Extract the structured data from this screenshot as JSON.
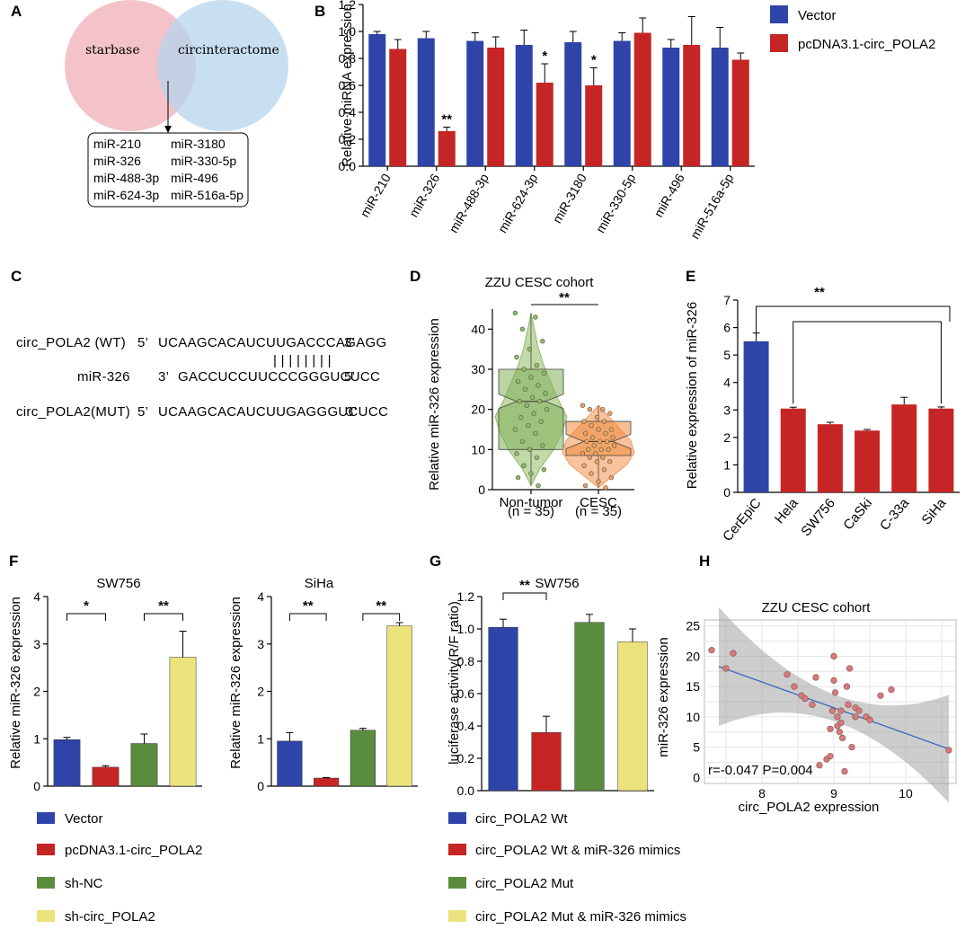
{
  "colors": {
    "blue": "#2e44a8",
    "red": "#c62525",
    "green": "#5a8c3e",
    "yellow": "#ece27c",
    "vennPink": "#f2b8bf",
    "vennBlue": "#b5d4ee",
    "violinGreen": "#b7d49a",
    "violinOrange": "#f7b98c"
  },
  "panelA": {
    "label": "A",
    "set1": "starbase",
    "set2": "circinteractome",
    "box_col1": [
      "miR-210",
      "miR-326",
      "miR-488-3p",
      "miR-624-3p"
    ],
    "box_col2": [
      "miR-3180",
      "miR-330-5p",
      "miR-496",
      "miR-516a-5p"
    ]
  },
  "panelC": {
    "label": "C",
    "wt_name": "circ_POLA2 (WT)",
    "wt_p5": "5’",
    "wt_seq": "UCAAGCACAUCUUGACCCAGAGG",
    "wt_p3": "3’",
    "bars": "| | | | | | | |",
    "mir_name": "miR-326",
    "mir_p3": "3’",
    "mir_seq": "GACCUCCUUCCCGGGUCUCC",
    "mir_p5": "5’",
    "mut_name": "circ_POLA2(MUT)",
    "mut_p5": "5’",
    "mut_seq": "UCAAGCACAUCUUGAGGGUCUCC",
    "mut_p3": "3’"
  },
  "chart_data": [
    {
      "panel": "B",
      "type": "bar",
      "title": "",
      "ylabel": "Relative miRNA expression",
      "ylim": [
        0,
        1.2
      ],
      "yticks": [
        "0.0",
        "0.2",
        "0.4",
        "0.6",
        "0.8",
        "1.0",
        "1.2"
      ],
      "categories": [
        "miR-210",
        "miR-326",
        "miR-488-3p",
        "miR-624-3p",
        "miR-3180",
        "miR-330-5p",
        "miR-496",
        "miR-516a-5p"
      ],
      "series": [
        {
          "name": "Vector",
          "color": "#2e44a8",
          "values": [
            0.98,
            0.95,
            0.93,
            0.9,
            0.92,
            0.93,
            0.88,
            0.88
          ],
          "errors": [
            0.02,
            0.05,
            0.06,
            0.11,
            0.08,
            0.06,
            0.06,
            0.15
          ]
        },
        {
          "name": "pcDNA3.1-circ_POLA2",
          "color": "#c62525",
          "values": [
            0.87,
            0.26,
            0.88,
            0.62,
            0.6,
            0.99,
            0.9,
            0.79
          ],
          "errors": [
            0.07,
            0.03,
            0.08,
            0.14,
            0.13,
            0.11,
            0.21,
            0.05
          ]
        }
      ],
      "annotations": [
        {
          "category": "miR-326",
          "text": "**"
        },
        {
          "category": "miR-624-3p",
          "text": "*"
        },
        {
          "category": "miR-3180",
          "text": "*"
        }
      ]
    },
    {
      "panel": "D",
      "type": "violin",
      "title": "ZZU CESC cohort",
      "ylabel": "Relative miR-326 expression",
      "ylim": [
        0,
        45
      ],
      "yticks": [
        "0",
        "10",
        "20",
        "30",
        "40"
      ],
      "groups": [
        {
          "name": "Non-tumor",
          "n": "(n = 35)",
          "median": 22,
          "q1": 10,
          "q3": 30,
          "min": 1,
          "max": 44,
          "points": [
            44,
            43,
            40,
            37,
            35,
            33,
            31,
            30,
            29,
            28,
            27,
            26,
            25,
            24,
            23,
            22,
            22,
            21,
            20,
            19,
            18,
            17,
            16,
            15,
            14,
            12,
            11,
            10,
            9,
            8,
            6,
            5,
            4,
            3,
            1
          ]
        },
        {
          "name": "CESC",
          "n": "(n = 35)",
          "median": 12,
          "q1": 8.5,
          "q3": 17,
          "min": 0.5,
          "max": 21,
          "points": [
            21,
            20,
            20,
            19,
            18,
            17,
            17,
            16,
            15,
            15,
            14,
            14,
            13,
            13,
            12,
            12,
            12,
            11,
            11,
            10,
            10,
            10,
            9,
            9,
            8,
            8,
            7,
            7,
            6,
            5,
            4,
            3,
            2,
            1,
            0.5
          ]
        }
      ],
      "annotation": "**"
    },
    {
      "panel": "E",
      "type": "bar",
      "title": "",
      "ylabel": "Relative expression of  miR-326",
      "ylim": [
        0,
        7
      ],
      "yticks": [
        "0",
        "1",
        "2",
        "3",
        "4",
        "5",
        "6",
        "7"
      ],
      "categories": [
        "CerEpiC",
        "Hela",
        "SW756",
        "CaSki",
        "C-33a",
        "SiHa"
      ],
      "values": [
        5.5,
        3.05,
        2.48,
        2.25,
        3.2,
        3.05
      ],
      "errors": [
        0.3,
        0.05,
        0.07,
        0.04,
        0.26,
        0.06
      ],
      "colors": [
        "#2e44a8",
        "#c62525",
        "#c62525",
        "#c62525",
        "#c62525",
        "#c62525"
      ],
      "annotation": "**"
    },
    {
      "panel": "F1",
      "type": "bar",
      "title": "SW756",
      "ylabel": "Relative miR-326 expression",
      "ylim": [
        0,
        4
      ],
      "yticks": [
        "0",
        "1",
        "2",
        "3",
        "4"
      ],
      "categories": [
        "Vector",
        "pcDNA3.1-circ_POLA2",
        "sh-NC",
        "sh-circ_POLA2"
      ],
      "values": [
        0.98,
        0.4,
        0.9,
        2.72
      ],
      "errors": [
        0.05,
        0.03,
        0.2,
        0.55
      ],
      "colors": [
        "#2e44a8",
        "#c62525",
        "#5a8c3e",
        "#ece27c"
      ],
      "annotations": [
        "*",
        "**"
      ]
    },
    {
      "panel": "F2",
      "type": "bar",
      "title": "SiHa",
      "ylabel": "Relative miR-326 expression",
      "ylim": [
        0,
        4
      ],
      "yticks": [
        "0",
        "1",
        "2",
        "3",
        "4"
      ],
      "categories": [
        "Vector",
        "pcDNA3.1-circ_POLA2",
        "sh-NC",
        "sh-circ_POLA2"
      ],
      "values": [
        0.95,
        0.17,
        1.18,
        3.38
      ],
      "errors": [
        0.18,
        0.01,
        0.04,
        0.07
      ],
      "colors": [
        "#2e44a8",
        "#c62525",
        "#5a8c3e",
        "#ece27c"
      ],
      "annotations": [
        "**",
        "**"
      ]
    },
    {
      "panel": "G",
      "type": "bar",
      "title": "SW756",
      "ylabel": "luciferase activity(R/F ratio)",
      "ylim": [
        0,
        1.2
      ],
      "yticks": [
        "0.0",
        "0.2",
        "0.4",
        "0.6",
        "0.8",
        "1.0",
        "1.2"
      ],
      "categories": [
        "circ_POLA2 Wt",
        "circ_POLA2 Wt & miR-326 mimics",
        "circ_POLA2 Mut",
        "circ_POLA2 Mut & miR-326 mimics"
      ],
      "values": [
        1.01,
        0.36,
        1.04,
        0.92
      ],
      "errors": [
        0.05,
        0.1,
        0.05,
        0.08
      ],
      "colors": [
        "#2e44a8",
        "#c62525",
        "#5a8c3e",
        "#ece27c"
      ],
      "annotation": "**"
    },
    {
      "panel": "H",
      "type": "scatter",
      "title": "ZZU CESC cohort",
      "xlabel": "circ_POLA2 expression",
      "ylabel": "miR-326 expression",
      "xlim": [
        7.2,
        10.7
      ],
      "ylim": [
        -1,
        26
      ],
      "xticks": [
        "8",
        "9",
        "10"
      ],
      "yticks": [
        "0",
        "5",
        "10",
        "15",
        "20",
        "25"
      ],
      "annotation": "r=-0.047 P=0.004",
      "fit": {
        "x0": 7.4,
        "y0": 18.3,
        "x1": 10.6,
        "y1": 4.7
      },
      "points": [
        [
          7.3,
          21
        ],
        [
          7.5,
          18
        ],
        [
          7.6,
          20.5
        ],
        [
          8.35,
          17
        ],
        [
          8.45,
          15
        ],
        [
          8.55,
          13.5
        ],
        [
          8.6,
          13
        ],
        [
          8.7,
          12
        ],
        [
          8.75,
          16.5
        ],
        [
          8.8,
          2
        ],
        [
          8.9,
          3
        ],
        [
          8.95,
          3.5
        ],
        [
          8.95,
          8
        ],
        [
          8.98,
          11
        ],
        [
          9.0,
          20
        ],
        [
          9.0,
          16
        ],
        [
          9.02,
          14
        ],
        [
          9.05,
          10
        ],
        [
          9.05,
          8.5
        ],
        [
          9.08,
          7.5
        ],
        [
          9.1,
          9
        ],
        [
          9.1,
          11
        ],
        [
          9.12,
          6.5
        ],
        [
          9.15,
          1
        ],
        [
          9.18,
          15
        ],
        [
          9.2,
          12
        ],
        [
          9.22,
          18
        ],
        [
          9.25,
          5
        ],
        [
          9.3,
          10
        ],
        [
          9.3,
          11.5
        ],
        [
          9.35,
          11
        ],
        [
          9.45,
          10
        ],
        [
          9.5,
          9.5
        ],
        [
          9.65,
          13.5
        ],
        [
          9.8,
          14.5
        ],
        [
          10.6,
          4.5
        ]
      ]
    }
  ],
  "legendB": [
    "Vector",
    "pcDNA3.1-circ_POLA2"
  ],
  "legendF": [
    "Vector",
    "pcDNA3.1-circ_POLA2",
    "sh-NC",
    "sh-circ_POLA2"
  ],
  "legendG": [
    "circ_POLA2 Wt",
    "circ_POLA2 Wt & miR-326 mimics",
    "circ_POLA2 Mut",
    "circ_POLA2 Mut & miR-326 mimics"
  ],
  "labels": {
    "B": "B",
    "D": "D",
    "E": "E",
    "F": "F",
    "G": "G",
    "H": "H"
  },
  "panelD_xlabels": {
    "n1": "(n = 35)",
    "n2": "(n = 35)"
  }
}
